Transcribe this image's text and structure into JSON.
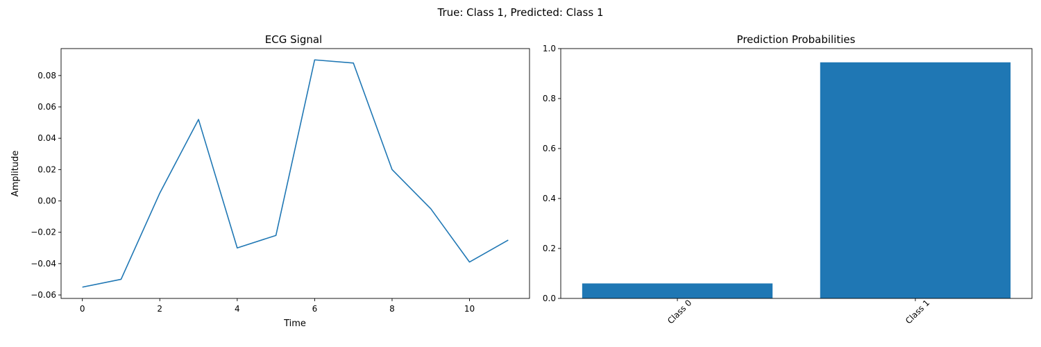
{
  "figure": {
    "suptitle": "True: Class 1, Predicted: Class 1"
  },
  "chart_data": [
    {
      "type": "line",
      "title": "ECG Signal",
      "xlabel": "Time",
      "ylabel": "Amplitude",
      "x": [
        0,
        1,
        2,
        3,
        4,
        5,
        6,
        7,
        8,
        9,
        10,
        11
      ],
      "series": [
        {
          "values": [
            -0.055,
            -0.05,
            0.005,
            0.052,
            -0.03,
            -0.022,
            0.09,
            0.088,
            0.02,
            -0.005,
            -0.039,
            -0.025
          ],
          "color": "#1f77b4"
        }
      ],
      "xlim": [
        -0.55,
        11.55
      ],
      "ylim": [
        -0.0622,
        0.0972
      ],
      "xticks": [
        0,
        2,
        4,
        6,
        8,
        10
      ],
      "xtick_labels": [
        "0",
        "2",
        "4",
        "6",
        "8",
        "10"
      ],
      "yticks": [
        -0.06,
        -0.04,
        -0.02,
        0.0,
        0.02,
        0.04,
        0.06,
        0.08
      ],
      "ytick_labels": [
        "−0.06",
        "−0.04",
        "−0.02",
        "0.00",
        "0.02",
        "0.04",
        "0.06",
        "0.08"
      ],
      "grid": false
    },
    {
      "type": "bar",
      "title": "Prediction Probabilities",
      "categories": [
        "Class 0",
        "Class 1"
      ],
      "values": [
        0.06,
        0.945
      ],
      "color": "#1f77b4",
      "ylim": [
        0,
        1.0
      ],
      "yticks": [
        0.0,
        0.2,
        0.4,
        0.6,
        0.8,
        1.0
      ],
      "ytick_labels": [
        "0.0",
        "0.2",
        "0.4",
        "0.6",
        "0.8",
        "1.0"
      ],
      "xtick_rotation": 45,
      "grid": false
    }
  ]
}
